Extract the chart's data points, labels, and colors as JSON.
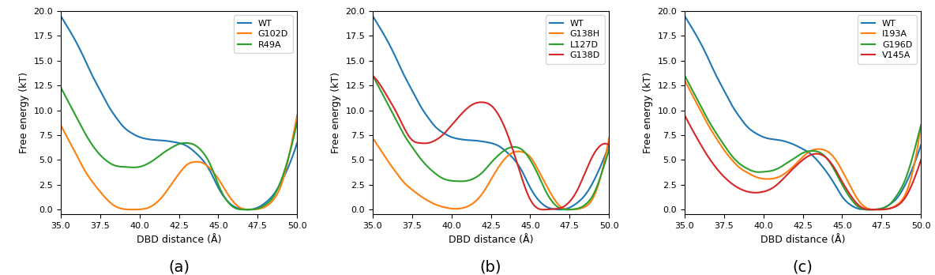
{
  "xlim": [
    35.0,
    50.0
  ],
  "ylim": [
    -0.5,
    20.0
  ],
  "yticks": [
    0.0,
    2.5,
    5.0,
    7.5,
    10.0,
    12.5,
    15.0,
    17.5,
    20.0
  ],
  "xticks": [
    35.0,
    37.5,
    40.0,
    42.5,
    45.0,
    47.5,
    50.0
  ],
  "xlabel": "DBD distance (Å)",
  "ylabel": "Free energy (kT)",
  "colors": {
    "WT": "#1f77b4",
    "orange": "#ff7f0e",
    "green": "#2ca02c",
    "red": "#d62728"
  },
  "panel_a": {
    "legend": [
      "WT",
      "G102D",
      "R49A"
    ],
    "WT": {
      "x": [
        35.0,
        35.5,
        36.0,
        36.5,
        37.0,
        37.5,
        38.0,
        38.5,
        39.0,
        39.5,
        40.0,
        40.5,
        41.0,
        41.5,
        42.0,
        42.5,
        43.0,
        43.5,
        44.0,
        44.5,
        45.0,
        45.5,
        46.0,
        46.5,
        47.0,
        47.5,
        48.0,
        48.5,
        49.0,
        49.5,
        50.0
      ],
      "y": [
        19.5,
        18.2,
        16.8,
        15.2,
        13.5,
        12.0,
        10.5,
        9.3,
        8.3,
        7.7,
        7.3,
        7.1,
        7.0,
        6.95,
        6.85,
        6.7,
        6.4,
        5.8,
        5.0,
        3.8,
        2.2,
        1.0,
        0.3,
        0.05,
        0.0,
        0.2,
        0.7,
        1.5,
        2.8,
        4.5,
        6.7
      ]
    },
    "G102D": {
      "x": [
        35.0,
        35.5,
        36.0,
        36.5,
        37.0,
        37.5,
        38.0,
        38.5,
        39.0,
        39.5,
        40.0,
        40.5,
        41.0,
        41.5,
        42.0,
        42.5,
        43.0,
        43.5,
        44.0,
        44.5,
        45.0,
        45.5,
        46.0,
        46.5,
        47.0,
        47.5,
        48.0,
        48.5,
        49.0,
        49.5,
        50.0
      ],
      "y": [
        8.5,
        7.0,
        5.5,
        4.0,
        2.8,
        1.8,
        0.9,
        0.3,
        0.05,
        0.0,
        0.02,
        0.15,
        0.6,
        1.4,
        2.5,
        3.6,
        4.5,
        4.8,
        4.7,
        4.1,
        3.1,
        1.8,
        0.7,
        0.1,
        0.0,
        0.05,
        0.3,
        1.0,
        2.5,
        5.5,
        9.5
      ]
    },
    "R49A": {
      "x": [
        35.0,
        35.5,
        36.0,
        36.5,
        37.0,
        37.5,
        38.0,
        38.5,
        39.0,
        39.5,
        40.0,
        40.5,
        41.0,
        41.5,
        42.0,
        42.5,
        43.0,
        43.5,
        44.0,
        44.5,
        45.0,
        45.5,
        46.0,
        46.5,
        47.0,
        47.5,
        48.0,
        48.5,
        49.0,
        49.5,
        50.0
      ],
      "y": [
        12.3,
        10.8,
        9.3,
        7.8,
        6.5,
        5.5,
        4.8,
        4.4,
        4.3,
        4.25,
        4.3,
        4.6,
        5.1,
        5.7,
        6.2,
        6.6,
        6.7,
        6.5,
        5.8,
        4.5,
        2.5,
        1.0,
        0.2,
        0.0,
        0.0,
        0.1,
        0.5,
        1.3,
        3.0,
        5.5,
        8.8
      ]
    }
  },
  "panel_b": {
    "legend": [
      "WT",
      "G138H",
      "L127D",
      "G138D"
    ],
    "WT": {
      "x": [
        35.0,
        35.5,
        36.0,
        36.5,
        37.0,
        37.5,
        38.0,
        38.5,
        39.0,
        39.5,
        40.0,
        40.5,
        41.0,
        41.5,
        42.0,
        42.5,
        43.0,
        43.5,
        44.0,
        44.5,
        45.0,
        45.5,
        46.0,
        46.5,
        47.0,
        47.5,
        48.0,
        48.5,
        49.0,
        49.5,
        50.0
      ],
      "y": [
        19.5,
        18.2,
        16.8,
        15.2,
        13.5,
        12.0,
        10.5,
        9.3,
        8.3,
        7.7,
        7.3,
        7.1,
        7.0,
        6.95,
        6.85,
        6.7,
        6.4,
        5.8,
        5.0,
        3.8,
        2.2,
        1.0,
        0.3,
        0.05,
        0.0,
        0.2,
        0.7,
        1.5,
        2.8,
        4.5,
        6.5
      ]
    },
    "G138H": {
      "x": [
        35.0,
        35.5,
        36.0,
        36.5,
        37.0,
        37.5,
        38.0,
        38.5,
        39.0,
        39.5,
        40.0,
        40.5,
        41.0,
        41.5,
        42.0,
        42.5,
        43.0,
        43.5,
        44.0,
        44.5,
        45.0,
        45.5,
        46.0,
        46.5,
        47.0,
        47.5,
        48.0,
        48.5,
        49.0,
        49.5,
        50.0
      ],
      "y": [
        7.2,
        6.0,
        4.8,
        3.7,
        2.7,
        2.0,
        1.4,
        0.9,
        0.5,
        0.25,
        0.1,
        0.1,
        0.3,
        0.8,
        1.7,
        3.0,
        4.3,
        5.3,
        5.8,
        5.8,
        5.3,
        4.0,
        2.5,
        1.1,
        0.2,
        0.0,
        0.05,
        0.3,
        1.2,
        3.5,
        7.2
      ]
    },
    "L127D": {
      "x": [
        35.0,
        35.5,
        36.0,
        36.5,
        37.0,
        37.5,
        38.0,
        38.5,
        39.0,
        39.5,
        40.0,
        40.5,
        41.0,
        41.5,
        42.0,
        42.5,
        43.0,
        43.5,
        44.0,
        44.5,
        45.0,
        45.5,
        46.0,
        46.5,
        47.0,
        47.5,
        48.0,
        48.5,
        49.0,
        49.5,
        50.0
      ],
      "y": [
        13.5,
        12.0,
        10.5,
        9.0,
        7.5,
        6.3,
        5.2,
        4.3,
        3.6,
        3.1,
        2.9,
        2.85,
        2.9,
        3.2,
        3.8,
        4.7,
        5.5,
        6.1,
        6.3,
        6.0,
        5.0,
        3.5,
        1.8,
        0.6,
        0.05,
        0.0,
        0.1,
        0.5,
        1.5,
        3.5,
        6.0
      ]
    },
    "G138D": {
      "x": [
        35.0,
        35.5,
        36.0,
        36.5,
        37.0,
        37.5,
        38.0,
        38.5,
        39.0,
        39.5,
        40.0,
        40.5,
        41.0,
        41.5,
        42.0,
        42.5,
        43.0,
        43.5,
        44.0,
        44.5,
        45.0,
        45.5,
        46.0,
        46.5,
        47.0,
        47.5,
        48.0,
        48.5,
        49.0,
        49.5,
        50.0
      ],
      "y": [
        13.5,
        12.5,
        11.2,
        9.8,
        8.2,
        7.0,
        6.7,
        6.7,
        7.0,
        7.6,
        8.5,
        9.4,
        10.2,
        10.7,
        10.8,
        10.5,
        9.5,
        7.8,
        5.5,
        3.0,
        1.0,
        0.1,
        0.0,
        0.05,
        0.2,
        0.8,
        2.0,
        3.8,
        5.5,
        6.5,
        6.5
      ]
    }
  },
  "panel_c": {
    "legend": [
      "WT",
      "I193A",
      "G196D",
      "V145A"
    ],
    "WT": {
      "x": [
        35.0,
        35.5,
        36.0,
        36.5,
        37.0,
        37.5,
        38.0,
        38.5,
        39.0,
        39.5,
        40.0,
        40.5,
        41.0,
        41.5,
        42.0,
        42.5,
        43.0,
        43.5,
        44.0,
        44.5,
        45.0,
        45.5,
        46.0,
        46.5,
        47.0,
        47.5,
        48.0,
        48.5,
        49.0,
        49.5,
        50.0
      ],
      "y": [
        19.5,
        18.2,
        16.8,
        15.2,
        13.5,
        12.0,
        10.5,
        9.3,
        8.3,
        7.7,
        7.3,
        7.1,
        7.0,
        6.8,
        6.5,
        6.1,
        5.6,
        4.8,
        3.8,
        2.6,
        1.3,
        0.5,
        0.1,
        0.0,
        0.0,
        0.1,
        0.5,
        1.2,
        2.5,
        4.3,
        6.5
      ]
    },
    "I193A": {
      "x": [
        35.0,
        35.5,
        36.0,
        36.5,
        37.0,
        37.5,
        38.0,
        38.5,
        39.0,
        39.5,
        40.0,
        40.5,
        41.0,
        41.5,
        42.0,
        42.5,
        43.0,
        43.5,
        44.0,
        44.5,
        45.0,
        45.5,
        46.0,
        46.5,
        47.0,
        47.5,
        48.0,
        48.5,
        49.0,
        49.5,
        50.0
      ],
      "y": [
        13.0,
        11.5,
        10.0,
        8.5,
        7.2,
        6.0,
        5.0,
        4.2,
        3.7,
        3.3,
        3.1,
        3.1,
        3.3,
        3.8,
        4.5,
        5.3,
        5.9,
        6.1,
        5.9,
        5.2,
        3.9,
        2.4,
        1.0,
        0.2,
        0.0,
        0.0,
        0.1,
        0.5,
        1.5,
        4.0,
        8.5
      ]
    },
    "G196D": {
      "x": [
        35.0,
        35.5,
        36.0,
        36.5,
        37.0,
        37.5,
        38.0,
        38.5,
        39.0,
        39.5,
        40.0,
        40.5,
        41.0,
        41.5,
        42.0,
        42.5,
        43.0,
        43.5,
        44.0,
        44.5,
        45.0,
        45.5,
        46.0,
        46.5,
        47.0,
        47.5,
        48.0,
        48.5,
        49.0,
        49.5,
        50.0
      ],
      "y": [
        13.5,
        12.0,
        10.5,
        9.0,
        7.7,
        6.5,
        5.4,
        4.6,
        4.1,
        3.8,
        3.8,
        3.9,
        4.2,
        4.7,
        5.2,
        5.7,
        5.9,
        5.8,
        5.2,
        4.0,
        2.5,
        1.2,
        0.3,
        0.0,
        0.0,
        0.1,
        0.5,
        1.5,
        3.0,
        5.5,
        8.5
      ]
    },
    "V145A": {
      "x": [
        35.0,
        35.5,
        36.0,
        36.5,
        37.0,
        37.5,
        38.0,
        38.5,
        39.0,
        39.5,
        40.0,
        40.5,
        41.0,
        41.5,
        42.0,
        42.5,
        43.0,
        43.5,
        44.0,
        44.5,
        45.0,
        45.5,
        46.0,
        46.5,
        47.0,
        47.5,
        48.0,
        48.5,
        49.0,
        49.5,
        50.0
      ],
      "y": [
        9.5,
        8.0,
        6.6,
        5.3,
        4.2,
        3.3,
        2.6,
        2.1,
        1.8,
        1.7,
        1.8,
        2.1,
        2.7,
        3.5,
        4.3,
        5.0,
        5.5,
        5.6,
        5.2,
        4.2,
        2.8,
        1.5,
        0.5,
        0.05,
        0.0,
        0.0,
        0.1,
        0.4,
        1.2,
        2.8,
        5.0
      ]
    }
  },
  "panel_labels": [
    "(a)",
    "(b)",
    "(c)"
  ],
  "label_fontsize": 14
}
